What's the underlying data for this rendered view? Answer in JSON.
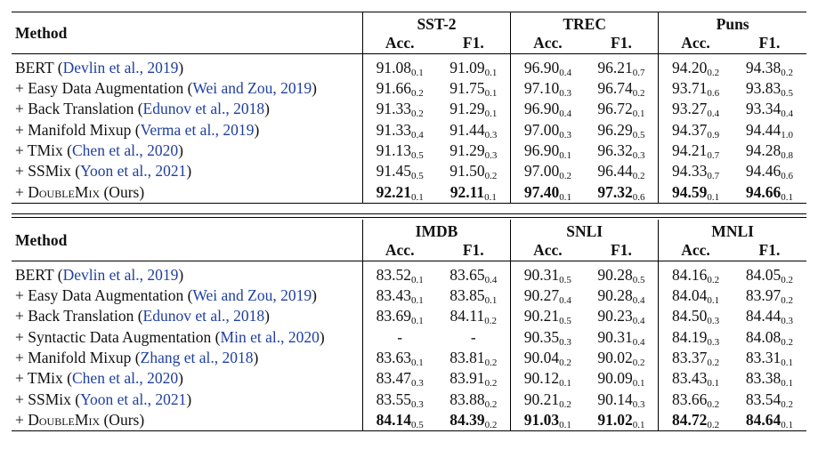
{
  "table1": {
    "method_header": "Method",
    "datasets": [
      "SST-2",
      "TREC",
      "Puns"
    ],
    "metrics": [
      "Acc.",
      "F1."
    ],
    "rows": [
      {
        "prefix": "BERT (",
        "cite": "Devlin et al., 2019",
        "suffix": ")",
        "name_sc": false,
        "cells": [
          [
            "91.08",
            "0.1"
          ],
          [
            "91.09",
            "0.1"
          ],
          [
            "96.90",
            "0.4"
          ],
          [
            "96.21",
            "0.7"
          ],
          [
            "94.20",
            "0.2"
          ],
          [
            "94.38",
            "0.2"
          ]
        ]
      },
      {
        "prefix": "+ Easy Data Augmentation (",
        "cite": "Wei and Zou, 2019",
        "suffix": ")",
        "name_sc": false,
        "cells": [
          [
            "91.66",
            "0.2"
          ],
          [
            "91.75",
            "0.1"
          ],
          [
            "97.10",
            "0.3"
          ],
          [
            "96.74",
            "0.2"
          ],
          [
            "93.71",
            "0.6"
          ],
          [
            "93.83",
            "0.5"
          ]
        ]
      },
      {
        "prefix": "+ Back Translation (",
        "cite": "Edunov et al., 2018",
        "suffix": ")",
        "name_sc": false,
        "cells": [
          [
            "91.33",
            "0.2"
          ],
          [
            "91.29",
            "0.1"
          ],
          [
            "96.90",
            "0.4"
          ],
          [
            "96.72",
            "0.1"
          ],
          [
            "93.27",
            "0.4"
          ],
          [
            "93.34",
            "0.4"
          ]
        ]
      },
      {
        "prefix": "+ Manifold Mixup (",
        "cite": "Verma et al., 2019",
        "suffix": ")",
        "name_sc": false,
        "cells": [
          [
            "91.33",
            "0.4"
          ],
          [
            "91.44",
            "0.3"
          ],
          [
            "97.00",
            "0.3"
          ],
          [
            "96.29",
            "0.5"
          ],
          [
            "94.37",
            "0.9"
          ],
          [
            "94.44",
            "1.0"
          ]
        ]
      },
      {
        "prefix": "+ TMix (",
        "cite": "Chen et al., 2020",
        "suffix": ")",
        "name_sc": false,
        "cells": [
          [
            "91.13",
            "0.5"
          ],
          [
            "91.29",
            "0.3"
          ],
          [
            "96.90",
            "0.1"
          ],
          [
            "96.32",
            "0.3"
          ],
          [
            "94.21",
            "0.7"
          ],
          [
            "94.28",
            "0.8"
          ]
        ]
      },
      {
        "prefix": "+ SSMix (",
        "cite": "Yoon et al., 2021",
        "suffix": ")",
        "name_sc": false,
        "cells": [
          [
            "91.45",
            "0.5"
          ],
          [
            "91.50",
            "0.2"
          ],
          [
            "97.00",
            "0.2"
          ],
          [
            "96.44",
            "0.2"
          ],
          [
            "94.33",
            "0.7"
          ],
          [
            "94.46",
            "0.6"
          ]
        ]
      },
      {
        "prefix": "+ ",
        "name": "DoubleMix",
        "suffix": " (Ours)",
        "name_sc": true,
        "bold": true,
        "cells": [
          [
            "92.21",
            "0.1"
          ],
          [
            "92.11",
            "0.1"
          ],
          [
            "97.40",
            "0.1"
          ],
          [
            "97.32",
            "0.6"
          ],
          [
            "94.59",
            "0.1"
          ],
          [
            "94.66",
            "0.1"
          ]
        ]
      }
    ]
  },
  "table2": {
    "method_header": "Method",
    "datasets": [
      "IMDB",
      "SNLI",
      "MNLI"
    ],
    "metrics": [
      "Acc.",
      "F1."
    ],
    "rows": [
      {
        "prefix": "BERT (",
        "cite": "Devlin et al., 2019",
        "suffix": ")",
        "name_sc": false,
        "cells": [
          [
            "83.52",
            "0.1"
          ],
          [
            "83.65",
            "0.4"
          ],
          [
            "90.31",
            "0.5"
          ],
          [
            "90.28",
            "0.5"
          ],
          [
            "84.16",
            "0.2"
          ],
          [
            "84.05",
            "0.2"
          ]
        ]
      },
      {
        "prefix": "+ Easy Data Augmentation (",
        "cite": "Wei and Zou, 2019",
        "suffix": ")",
        "name_sc": false,
        "cells": [
          [
            "83.43",
            "0.1"
          ],
          [
            "83.85",
            "0.1"
          ],
          [
            "90.27",
            "0.4"
          ],
          [
            "90.28",
            "0.4"
          ],
          [
            "84.04",
            "0.1"
          ],
          [
            "83.97",
            "0.2"
          ]
        ]
      },
      {
        "prefix": "+ Back Translation (",
        "cite": "Edunov et al., 2018",
        "suffix": ")",
        "name_sc": false,
        "cells": [
          [
            "83.69",
            "0.1"
          ],
          [
            "84.11",
            "0.2"
          ],
          [
            "90.21",
            "0.5"
          ],
          [
            "90.23",
            "0.4"
          ],
          [
            "84.50",
            "0.3"
          ],
          [
            "84.44",
            "0.3"
          ]
        ]
      },
      {
        "prefix": "+ Syntactic Data Augmentation (",
        "cite": "Min et al., 2020",
        "suffix": ")",
        "name_sc": false,
        "cells": [
          [
            "-",
            ""
          ],
          [
            "-",
            ""
          ],
          [
            "90.35",
            "0.3"
          ],
          [
            "90.31",
            "0.4"
          ],
          [
            "84.19",
            "0.3"
          ],
          [
            "84.08",
            "0.2"
          ]
        ]
      },
      {
        "prefix": "+ Manifold Mixup (",
        "cite": "Zhang et al., 2018",
        "suffix": ")",
        "name_sc": false,
        "cells": [
          [
            "83.63",
            "0.1"
          ],
          [
            "83.81",
            "0.2"
          ],
          [
            "90.04",
            "0.2"
          ],
          [
            "90.02",
            "0.2"
          ],
          [
            "83.37",
            "0.2"
          ],
          [
            "83.31",
            "0.1"
          ]
        ]
      },
      {
        "prefix": "+ TMix (",
        "cite": "Chen et al., 2020",
        "suffix": ")",
        "name_sc": false,
        "cells": [
          [
            "83.47",
            "0.3"
          ],
          [
            "83.91",
            "0.2"
          ],
          [
            "90.12",
            "0.1"
          ],
          [
            "90.09",
            "0.1"
          ],
          [
            "83.43",
            "0.1"
          ],
          [
            "83.38",
            "0.1"
          ]
        ]
      },
      {
        "prefix": "+ SSMix (",
        "cite": "Yoon et al., 2021",
        "suffix": ")",
        "name_sc": false,
        "cells": [
          [
            "83.55",
            "0.3"
          ],
          [
            "83.88",
            "0.2"
          ],
          [
            "90.21",
            "0.2"
          ],
          [
            "90.14",
            "0.3"
          ],
          [
            "83.66",
            "0.2"
          ],
          [
            "83.54",
            "0.2"
          ]
        ]
      },
      {
        "prefix": "+ ",
        "name": "DoubleMix",
        "suffix": " (Ours)",
        "name_sc": true,
        "bold": true,
        "cells": [
          [
            "84.14",
            "0.5"
          ],
          [
            "84.39",
            "0.2"
          ],
          [
            "91.03",
            "0.1"
          ],
          [
            "91.02",
            "0.1"
          ],
          [
            "84.72",
            "0.2"
          ],
          [
            "84.64",
            "0.1"
          ]
        ]
      }
    ]
  },
  "colors": {
    "text": "#111111",
    "citation": "#1f3f9f",
    "rules": "#000000"
  }
}
